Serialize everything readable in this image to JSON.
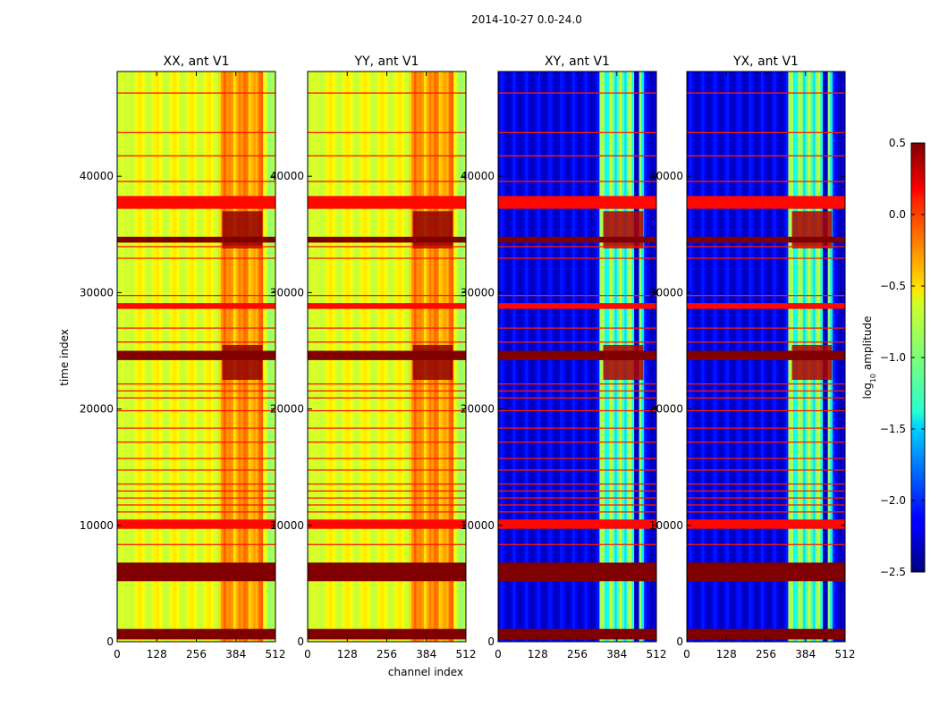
{
  "figure": {
    "suptitle": "2014-10-27 0.0-24.0"
  },
  "chart_data": {
    "type": "heatmap",
    "colormap": "jet",
    "xlabel": "channel index",
    "ylabel": "time index",
    "x_range": [
      0,
      512
    ],
    "y_range": [
      0,
      49000
    ],
    "x_ticks": [
      "0",
      "128",
      "256",
      "384",
      "512"
    ],
    "x_tick_values": [
      0,
      128,
      256,
      384,
      512
    ],
    "y_ticks": [
      "0",
      "10000",
      "20000",
      "30000",
      "40000"
    ],
    "y_tick_values": [
      0,
      10000,
      20000,
      30000,
      40000
    ],
    "colorbar": {
      "label_base": "log",
      "label_sub": "10",
      "label_rest": " amplitude",
      "range": [
        -2.5,
        0.5
      ],
      "ticks": [
        "0.5",
        "0.0",
        "−0.5",
        "−1.0",
        "−1.5",
        "−2.0",
        "−2.5"
      ],
      "tick_values": [
        0.5,
        0.0,
        -0.5,
        -1.0,
        -1.5,
        -2.0,
        -2.5
      ]
    },
    "panels": [
      {
        "title": "XX, ant V1",
        "kind": "auto",
        "background_level": -0.6
      },
      {
        "title": "YY, ant V1",
        "kind": "auto",
        "background_level": -0.6
      },
      {
        "title": "XY, ant V1",
        "kind": "cross",
        "background_level": -2.2
      },
      {
        "title": "YX, ant V1",
        "kind": "cross",
        "background_level": -2.2
      }
    ],
    "rfi_time_bands": [
      {
        "t0": 200,
        "t1": 1100,
        "level": 0.5
      },
      {
        "t0": 5200,
        "t1": 6800,
        "level": 0.5
      },
      {
        "t0": 9700,
        "t1": 10500,
        "level": 0.1
      },
      {
        "t0": 24200,
        "t1": 25000,
        "level": 0.5
      },
      {
        "t0": 28600,
        "t1": 29100,
        "level": 0.1
      },
      {
        "t0": 34300,
        "t1": 34800,
        "level": 0.5
      },
      {
        "t0": 37200,
        "t1": 38300,
        "level": 0.1
      }
    ],
    "bright_channel_band": [
      330,
      470
    ],
    "strong_rfi_blocks": [
      {
        "t0": 22500,
        "t1": 25500,
        "c0": 340,
        "c1": 470
      },
      {
        "t0": 33800,
        "t1": 37000,
        "c0": 340,
        "c1": 470
      }
    ]
  }
}
